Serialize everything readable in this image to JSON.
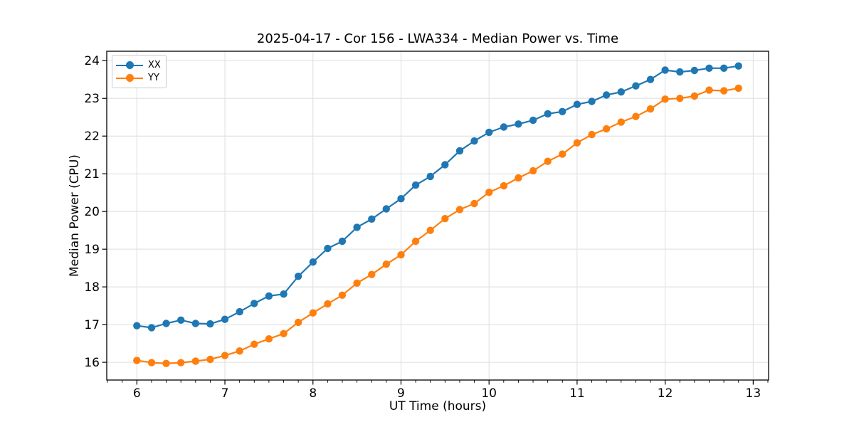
{
  "chart_data": {
    "type": "line",
    "title": "2025-04-17 - Cor 156 - LWA334 - Median Power vs. Time",
    "xlabel": "UT Time (hours)",
    "ylabel": "Median Power (CPU)",
    "xlim": [
      5.658,
      13.175
    ],
    "ylim": [
      15.53,
      24.25
    ],
    "xticks": [
      6,
      7,
      8,
      9,
      10,
      11,
      12,
      13
    ],
    "yticks": [
      16,
      17,
      18,
      19,
      20,
      21,
      22,
      23,
      24
    ],
    "x_minor_tick_step_hours": 0.1667,
    "grid": true,
    "legend_position": "upper-left",
    "background_color": "#ffffff",
    "grid_color": "#dedede",
    "x": [
      6.0,
      6.167,
      6.333,
      6.5,
      6.667,
      6.833,
      7.0,
      7.167,
      7.333,
      7.5,
      7.667,
      7.833,
      8.0,
      8.167,
      8.333,
      8.5,
      8.667,
      8.833,
      9.0,
      9.167,
      9.333,
      9.5,
      9.667,
      9.833,
      10.0,
      10.167,
      10.333,
      10.5,
      10.667,
      10.833,
      11.0,
      11.167,
      11.333,
      11.5,
      11.667,
      11.833,
      12.0,
      12.167,
      12.333,
      12.5,
      12.667,
      12.833
    ],
    "series": [
      {
        "name": "XX",
        "color": "#1f77b4",
        "values": [
          16.97,
          16.92,
          17.03,
          17.12,
          17.03,
          17.02,
          17.14,
          17.34,
          17.56,
          17.76,
          17.81,
          18.28,
          18.66,
          19.02,
          19.21,
          19.58,
          19.8,
          20.07,
          20.34,
          20.7,
          20.93,
          21.24,
          21.61,
          21.87,
          22.1,
          22.24,
          22.32,
          22.42,
          22.59,
          22.65,
          22.84,
          22.92,
          23.09,
          23.17,
          23.33,
          23.5,
          23.75,
          23.7,
          23.74,
          23.8,
          23.8,
          23.86
        ]
      },
      {
        "name": "YY",
        "color": "#ff7f0e",
        "values": [
          16.05,
          15.99,
          15.97,
          15.99,
          16.03,
          16.08,
          16.18,
          16.3,
          16.48,
          16.62,
          16.76,
          17.06,
          17.31,
          17.55,
          17.78,
          18.1,
          18.33,
          18.6,
          18.85,
          19.21,
          19.5,
          19.81,
          20.05,
          20.21,
          20.51,
          20.68,
          20.89,
          21.08,
          21.33,
          21.52,
          21.82,
          22.04,
          22.19,
          22.37,
          22.52,
          22.72,
          22.98,
          23.0,
          23.06,
          23.22,
          23.2,
          23.27
        ]
      }
    ]
  }
}
